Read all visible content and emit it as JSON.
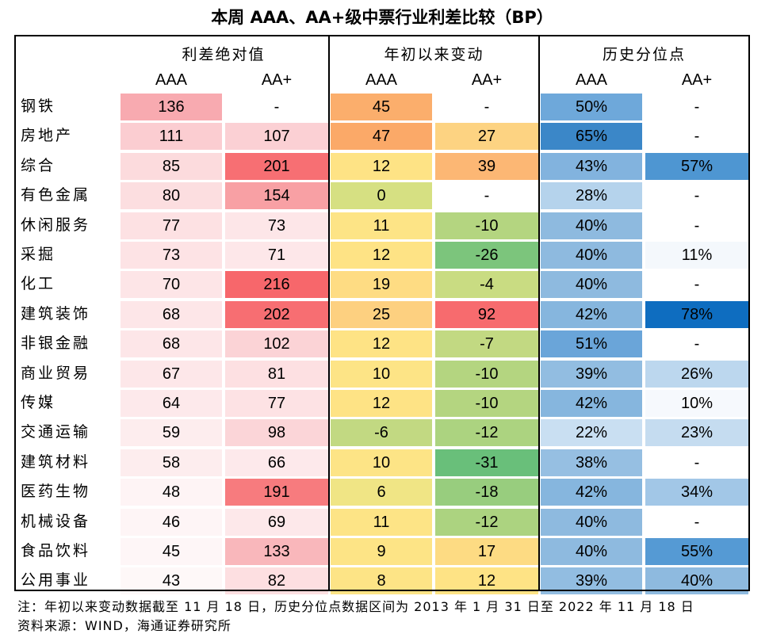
{
  "title": "本周 AAA、AA+级中票行业利差比较（BP）",
  "groups": [
    "利差绝对值",
    "年初以来变动",
    "历史分位点"
  ],
  "subheaders": [
    "AAA",
    "AA+",
    "AAA",
    "AA+",
    "AAA",
    "AA+"
  ],
  "rows": [
    {
      "name": "钢铁",
      "cells": [
        "136",
        "-",
        "45",
        "-",
        "50%",
        "-"
      ],
      "colors": [
        "#f8aab0",
        "#ffffff",
        "#fbae6c",
        "#ffffff",
        "#6ea8da",
        "#ffffff"
      ]
    },
    {
      "name": "房地产",
      "cells": [
        "111",
        "107",
        "47",
        "27",
        "65%",
        "-"
      ],
      "colors": [
        "#fbcdd1",
        "#fbd0d4",
        "#fba968",
        "#fdd382",
        "#3b87c8",
        "#ffffff"
      ]
    },
    {
      "name": "综合",
      "cells": [
        "85",
        "201",
        "12",
        "39",
        "43%",
        "57%"
      ],
      "colors": [
        "#fcdbdd",
        "#f76f73",
        "#fee385",
        "#fcb774",
        "#82b3de",
        "#4e96d2"
      ]
    },
    {
      "name": "有色金属",
      "cells": [
        "80",
        "154",
        "0",
        "-",
        "28%",
        "-"
      ],
      "colors": [
        "#fcdee0",
        "#f8a0a4",
        "#d6e082",
        "#ffffff",
        "#b5d3ec",
        "#ffffff"
      ]
    },
    {
      "name": "休闲服务",
      "cells": [
        "77",
        "73",
        "11",
        "-10",
        "40%",
        "-"
      ],
      "colors": [
        "#fde1e3",
        "#fde6e8",
        "#fde486",
        "#b4d580",
        "#8ebadf",
        "#ffffff"
      ]
    },
    {
      "name": "采掘",
      "cells": [
        "73",
        "71",
        "12",
        "-26",
        "40%",
        "11%"
      ],
      "colors": [
        "#fde3e5",
        "#fde7e9",
        "#fee385",
        "#7cc57c",
        "#8ebadf",
        "#f4f8fc"
      ]
    },
    {
      "name": "化工",
      "cells": [
        "70",
        "216",
        "19",
        "-4",
        "40%",
        "-"
      ],
      "colors": [
        "#fde5e7",
        "#f7676b",
        "#fedc83",
        "#c9dc82",
        "#8ebadf",
        "#ffffff"
      ]
    },
    {
      "name": "建筑装饰",
      "cells": [
        "68",
        "202",
        "25",
        "92",
        "42%",
        "78%"
      ],
      "colors": [
        "#fde6e8",
        "#f76e72",
        "#fdd080",
        "#f76b6e",
        "#86b6de",
        "#0e6dc0"
      ]
    },
    {
      "name": "非银金融",
      "cells": [
        "68",
        "102",
        "12",
        "-7",
        "51%",
        "-"
      ],
      "colors": [
        "#fde6e8",
        "#fbd3d6",
        "#fee385",
        "#c2d982",
        "#6aa5d9",
        "#ffffff"
      ]
    },
    {
      "name": "商业贸易",
      "cells": [
        "67",
        "81",
        "10",
        "-10",
        "39%",
        "26%"
      ],
      "colors": [
        "#fde7e9",
        "#fde0e2",
        "#fde486",
        "#b4d580",
        "#92bde1",
        "#bcd7ee"
      ]
    },
    {
      "name": "传媒",
      "cells": [
        "64",
        "77",
        "12",
        "-10",
        "42%",
        "10%"
      ],
      "colors": [
        "#fde9eb",
        "#fde2e4",
        "#fee385",
        "#b4d580",
        "#86b6de",
        "#f6f9fd"
      ]
    },
    {
      "name": "交通运输",
      "cells": [
        "59",
        "98",
        "-6",
        "-12",
        "22%",
        "23%"
      ],
      "colors": [
        "#fdedee",
        "#fbd5d8",
        "#c2d982",
        "#acd380",
        "#c9dff2",
        "#c5dcf0"
      ]
    },
    {
      "name": "建筑材料",
      "cells": [
        "58",
        "66",
        "10",
        "-31",
        "38%",
        "-"
      ],
      "colors": [
        "#fdedee",
        "#fde9eb",
        "#fde486",
        "#69bf7a",
        "#96bfe2",
        "#ffffff"
      ]
    },
    {
      "name": "医药生物",
      "cells": [
        "48",
        "191",
        "6",
        "-18",
        "42%",
        "34%"
      ],
      "colors": [
        "#fef4f5",
        "#f77b7e",
        "#f0e585",
        "#98cd7e",
        "#86b6de",
        "#a2c7e7"
      ]
    },
    {
      "name": "机械设备",
      "cells": [
        "46",
        "69",
        "11",
        "-12",
        "40%",
        "-"
      ],
      "colors": [
        "#fef5f6",
        "#fde8ea",
        "#fde486",
        "#acd380",
        "#8ebadf",
        "#ffffff"
      ]
    },
    {
      "name": "食品饮料",
      "cells": [
        "45",
        "133",
        "9",
        "17",
        "40%",
        "55%"
      ],
      "colors": [
        "#fef6f7",
        "#f9b7bb",
        "#fde486",
        "#fddb83",
        "#8ebadf",
        "#559ad4"
      ]
    },
    {
      "name": "公用事业",
      "cells": [
        "43",
        "82",
        "8",
        "12",
        "39%",
        "40%"
      ],
      "colors": [
        "#fef8f8",
        "#fddfe1",
        "#fde486",
        "#fee385",
        "#92bde1",
        "#8ebadf"
      ]
    }
  ],
  "notes": [
    "注：年初以来变动数据截至 11 月 18 日，历史分位点数据区间为 2013 年 1 月 31 日至 2022 年 11 月 18 日",
    "资料来源：WIND，海通证券研究所"
  ]
}
